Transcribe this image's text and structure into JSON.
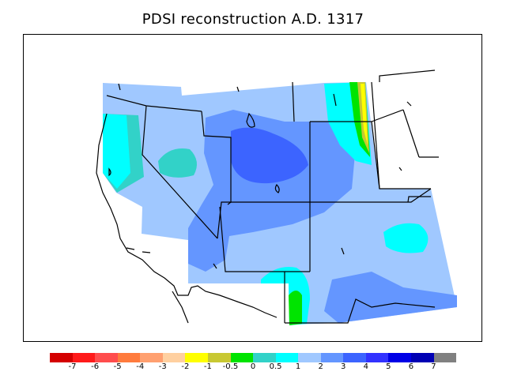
{
  "title": "PDSI reconstruction A.D. 1317",
  "colorbar": {
    "colors": [
      "#d40000",
      "#ff1a1a",
      "#ff4d4d",
      "#ff7b3d",
      "#ffa070",
      "#ffd0a0",
      "#ffff00",
      "#c8c832",
      "#00e400",
      "#32d2c8",
      "#00ffff",
      "#a0c8ff",
      "#6496ff",
      "#3c64ff",
      "#3232ff",
      "#0000e6",
      "#0000b4",
      "#808080"
    ],
    "labels": [
      "-7",
      "-6",
      "-5",
      "-4",
      "-3",
      "-2",
      "-1",
      "-0.5",
      "0",
      "0.5",
      "1",
      "2",
      "3",
      "4",
      "5",
      "6",
      "7"
    ]
  },
  "map": {
    "region": "US Southwest",
    "palette": {
      "light_blue": "#a0c8ff",
      "mid_blue": "#6496ff",
      "dark_blue": "#3c64ff",
      "teal": "#32d2c8",
      "cyan": "#00ffff",
      "green": "#00e400",
      "olive": "#c8c832",
      "yellow": "#ffff00"
    }
  }
}
